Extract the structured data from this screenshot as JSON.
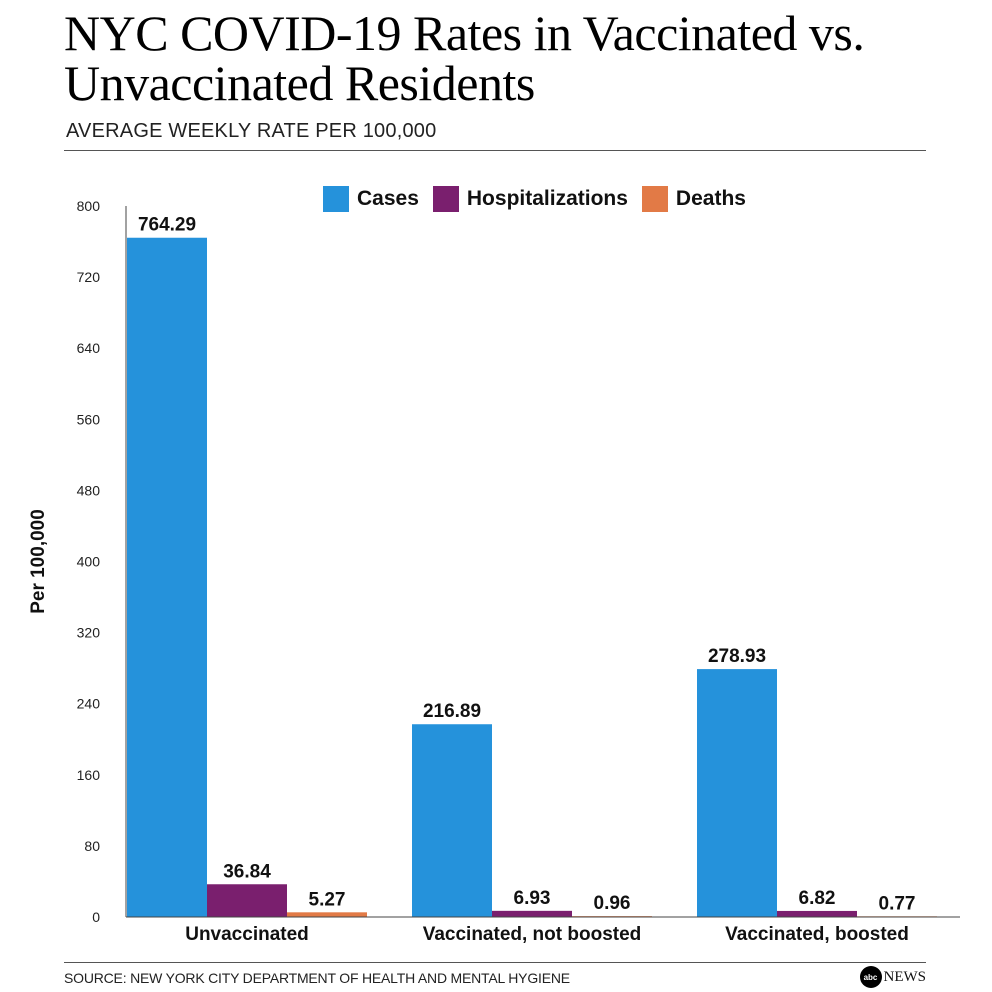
{
  "header": {
    "title": "NYC COVID-19 Rates in Vaccinated vs. Unvaccinated Residents",
    "subtitle": "AVERAGE WEEKLY RATE PER 100,000"
  },
  "footer": {
    "source": "SOURCE: NEW YORK CITY DEPARTMENT OF HEALTH AND MENTAL HYGIENE",
    "brand_logo": "abc",
    "brand_text": "NEWS"
  },
  "chart_data": {
    "type": "bar",
    "title": "NYC COVID-19 Rates in Vaccinated vs. Unvaccinated Residents",
    "subtitle": "AVERAGE WEEKLY RATE PER 100,000",
    "xlabel": "",
    "ylabel": "Per 100,000",
    "ylim": [
      0,
      800
    ],
    "yticks": [
      0,
      80,
      160,
      240,
      320,
      400,
      480,
      560,
      640,
      720,
      800
    ],
    "categories": [
      "Unvaccinated",
      "Vaccinated, not boosted",
      "Vaccinated, boosted"
    ],
    "series": [
      {
        "name": "Cases",
        "color": "#2592DB",
        "values": [
          764.29,
          216.89,
          278.93
        ],
        "labels": [
          "764.29",
          "216.89",
          "278.93"
        ]
      },
      {
        "name": "Hospitalizations",
        "color": "#7A1F6E",
        "values": [
          36.84,
          6.93,
          6.82
        ],
        "labels": [
          "36.84",
          "6.93",
          "6.82"
        ]
      },
      {
        "name": "Deaths",
        "color": "#E27A46",
        "values": [
          5.27,
          0.96,
          0.77
        ],
        "labels": [
          "5.27",
          "0.96",
          "0.77"
        ]
      }
    ],
    "legend_position": "top-center",
    "grid": false
  }
}
